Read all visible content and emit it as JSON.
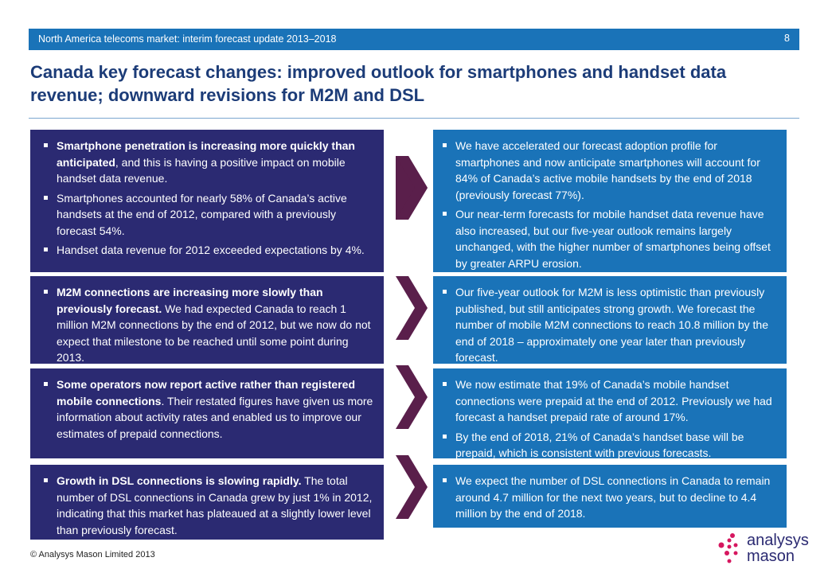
{
  "header": {
    "bar_text": "North America telecoms market: interim forecast update 2013–2018",
    "page_number": "8"
  },
  "title": "Canada key forecast changes: improved outlook for smartphones and handset data revenue; downward revisions for M2M and DSL",
  "rows": [
    {
      "left": [
        {
          "bold": "Smartphone penetration is increasing more quickly than anticipated",
          "text": ", and this is having a positive impact on mobile handset data revenue."
        },
        {
          "bold": "",
          "text": "Smartphones accounted for nearly 58% of Canada’s active handsets at the end of 2012, compared with a previously forecast 54%."
        },
        {
          "bold": "",
          "text": "Handset data revenue for 2012 exceeded expectations by 4%."
        }
      ],
      "right": [
        {
          "bold": "",
          "text": "We have accelerated our forecast adoption profile for smartphones and now anticipate smartphones will account for 84% of Canada’s active mobile handsets by the end of 2018 (previously forecast 77%)."
        },
        {
          "bold": "",
          "text": "Our near-term forecasts for mobile handset data revenue have also increased, but our five-year outlook remains largely unchanged, with the higher number of smartphones being offset by greater ARPU erosion."
        }
      ]
    },
    {
      "left": [
        {
          "bold": "M2M connections are increasing more slowly than previously forecast.",
          "text": " We had expected Canada to reach 1 million M2M connections by the end of 2012, but we now do not expect that milestone to be reached until some point during 2013."
        }
      ],
      "right": [
        {
          "bold": "",
          "text": "Our five-year outlook for M2M is less optimistic than previously published, but still anticipates strong growth. We forecast the number of mobile M2M connections to reach 10.8 million by the end of 2018 – approximately one year later than previously forecast."
        }
      ]
    },
    {
      "left": [
        {
          "bold": "Some operators now report active rather than registered mobile connections",
          "text": ". Their restated figures have given us more information about activity rates and enabled us to improve our estimates of prepaid connections."
        }
      ],
      "right": [
        {
          "bold": "",
          "text": "We now estimate that 19% of Canada’s mobile handset connections were prepaid at the end of 2012. Previously we had forecast a handset prepaid rate of around 17%."
        },
        {
          "bold": "",
          "text": "By the end of 2018, 21% of Canada’s handset base will be prepaid, which is consistent with previous forecasts."
        }
      ]
    },
    {
      "left": [
        {
          "bold": "Growth in DSL connections is slowing rapidly.",
          "text": " The total number of DSL connections in Canada grew by just 1% in 2012, indicating that this market has plateaued at a slightly lower level than previously forecast."
        }
      ],
      "right": [
        {
          "bold": "",
          "text": "We expect the number of DSL connections in Canada to remain around 4.7 million for the next two years, but to decline to 4.4 million by the end of 2018."
        }
      ]
    }
  ],
  "footer": {
    "copyright": "© Analysys Mason Limited 2013",
    "logo_line1": "analysys",
    "logo_line2": "mason"
  },
  "colors": {
    "top_bar": "#1a73b8",
    "title": "#1c3c78",
    "left_box": "#2b2a72",
    "right_box": "#1a73b8",
    "arrow": "#5a1f4b",
    "logo_dots": "#d6175f"
  }
}
